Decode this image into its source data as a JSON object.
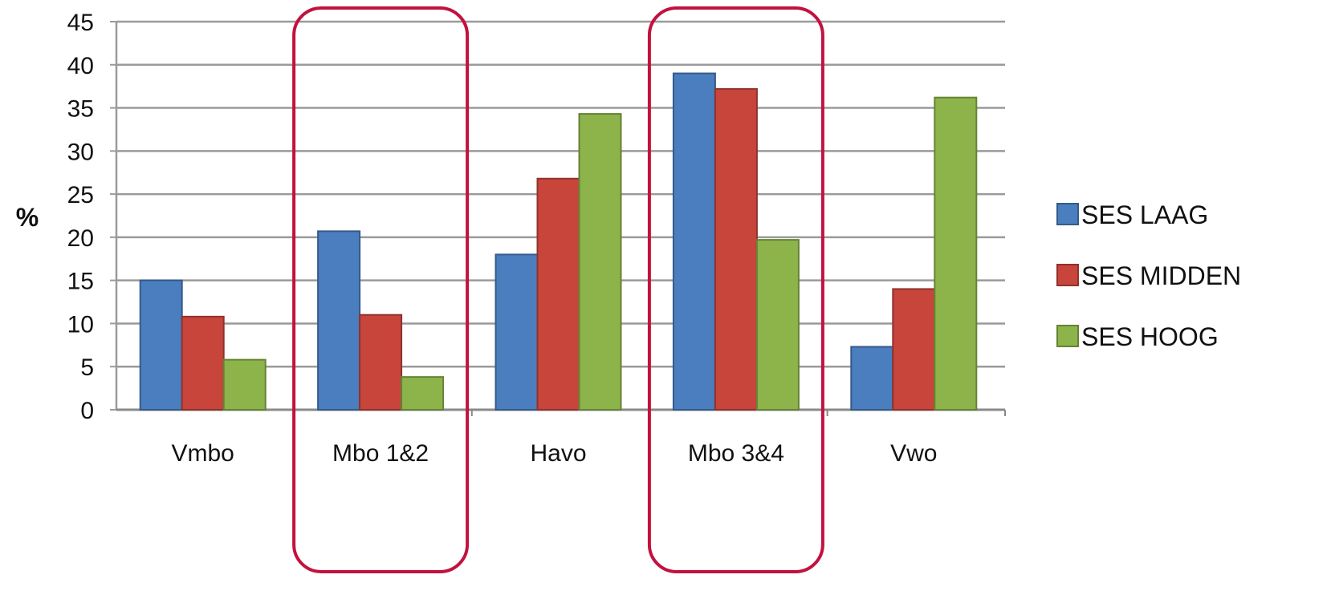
{
  "chart_data": {
    "type": "bar",
    "ylabel": "%",
    "xlabel": "",
    "ylim": [
      0,
      45
    ],
    "yticks": [
      0,
      5,
      10,
      15,
      20,
      25,
      30,
      35,
      40,
      45
    ],
    "grid": true,
    "legend_position": "right",
    "categories": [
      "Vmbo",
      "Mbo 1&2",
      "Havo",
      "Mbo 3&4",
      "Vwo"
    ],
    "series": [
      {
        "name": "SES LAAG",
        "color": "#4a7ebf",
        "values": [
          15,
          20.7,
          18,
          39,
          7.3
        ]
      },
      {
        "name": "SES MIDDEN",
        "color": "#c8453c",
        "values": [
          10.8,
          11,
          26.8,
          37.2,
          14
        ]
      },
      {
        "name": "SES HOOG",
        "color": "#8db44a",
        "values": [
          5.8,
          3.8,
          34.3,
          19.7,
          36.2
        ]
      }
    ],
    "highlighted_categories": [
      "Mbo 1&2",
      "Mbo 3&4"
    ],
    "highlight_color": "#c2123f"
  }
}
